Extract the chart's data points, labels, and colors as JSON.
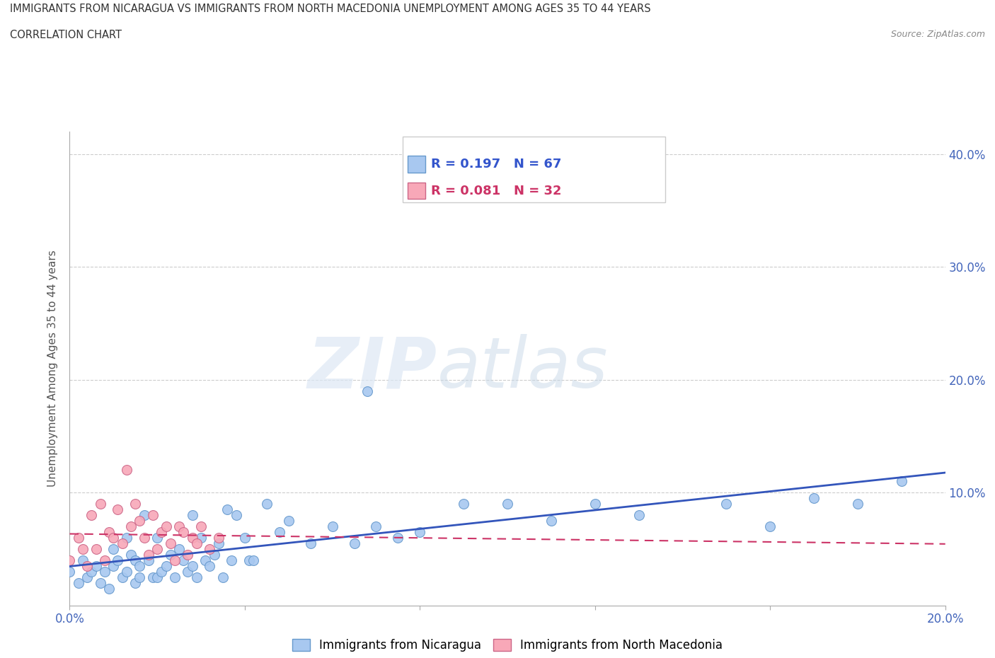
{
  "title_line1": "IMMIGRANTS FROM NICARAGUA VS IMMIGRANTS FROM NORTH MACEDONIA UNEMPLOYMENT AMONG AGES 35 TO 44 YEARS",
  "title_line2": "CORRELATION CHART",
  "source": "Source: ZipAtlas.com",
  "ylabel": "Unemployment Among Ages 35 to 44 years",
  "xlim": [
    0.0,
    0.2
  ],
  "ylim": [
    0.0,
    0.42
  ],
  "watermark_part1": "ZIP",
  "watermark_part2": "atlas",
  "nicaragua_color": "#a8c8f0",
  "nicaragua_edge": "#6699cc",
  "macedonia_color": "#f8a8b8",
  "macedonia_edge": "#cc6688",
  "trend_nicaragua_color": "#3355bb",
  "trend_macedonia_color": "#cc3366",
  "R_nicaragua": 0.197,
  "N_nicaragua": 67,
  "R_macedonia": 0.081,
  "N_macedonia": 32,
  "legend_label_nicaragua": "Immigrants from Nicaragua",
  "legend_label_macedonia": "Immigrants from North Macedonia",
  "nicaragua_x": [
    0.0,
    0.002,
    0.003,
    0.004,
    0.005,
    0.006,
    0.007,
    0.008,
    0.009,
    0.01,
    0.01,
    0.011,
    0.012,
    0.013,
    0.013,
    0.014,
    0.015,
    0.015,
    0.016,
    0.016,
    0.017,
    0.018,
    0.019,
    0.02,
    0.02,
    0.021,
    0.022,
    0.023,
    0.024,
    0.025,
    0.026,
    0.027,
    0.028,
    0.028,
    0.029,
    0.03,
    0.031,
    0.032,
    0.033,
    0.034,
    0.035,
    0.036,
    0.037,
    0.038,
    0.04,
    0.041,
    0.042,
    0.045,
    0.048,
    0.05,
    0.055,
    0.06,
    0.065,
    0.068,
    0.07,
    0.075,
    0.08,
    0.09,
    0.1,
    0.11,
    0.12,
    0.13,
    0.15,
    0.16,
    0.17,
    0.18,
    0.19
  ],
  "nicaragua_y": [
    0.03,
    0.02,
    0.04,
    0.025,
    0.03,
    0.035,
    0.02,
    0.03,
    0.015,
    0.035,
    0.05,
    0.04,
    0.025,
    0.06,
    0.03,
    0.045,
    0.02,
    0.04,
    0.035,
    0.025,
    0.08,
    0.04,
    0.025,
    0.025,
    0.06,
    0.03,
    0.035,
    0.045,
    0.025,
    0.05,
    0.04,
    0.03,
    0.08,
    0.035,
    0.025,
    0.06,
    0.04,
    0.035,
    0.045,
    0.055,
    0.025,
    0.085,
    0.04,
    0.08,
    0.06,
    0.04,
    0.04,
    0.09,
    0.065,
    0.075,
    0.055,
    0.07,
    0.055,
    0.19,
    0.07,
    0.06,
    0.065,
    0.09,
    0.09,
    0.075,
    0.09,
    0.08,
    0.09,
    0.07,
    0.095,
    0.09,
    0.11
  ],
  "macedonia_x": [
    0.0,
    0.002,
    0.003,
    0.004,
    0.005,
    0.006,
    0.007,
    0.008,
    0.009,
    0.01,
    0.011,
    0.012,
    0.013,
    0.014,
    0.015,
    0.016,
    0.017,
    0.018,
    0.019,
    0.02,
    0.021,
    0.022,
    0.023,
    0.024,
    0.025,
    0.026,
    0.027,
    0.028,
    0.029,
    0.03,
    0.032,
    0.034
  ],
  "macedonia_y": [
    0.04,
    0.06,
    0.05,
    0.035,
    0.08,
    0.05,
    0.09,
    0.04,
    0.065,
    0.06,
    0.085,
    0.055,
    0.12,
    0.07,
    0.09,
    0.075,
    0.06,
    0.045,
    0.08,
    0.05,
    0.065,
    0.07,
    0.055,
    0.04,
    0.07,
    0.065,
    0.045,
    0.06,
    0.055,
    0.07,
    0.05,
    0.06
  ]
}
